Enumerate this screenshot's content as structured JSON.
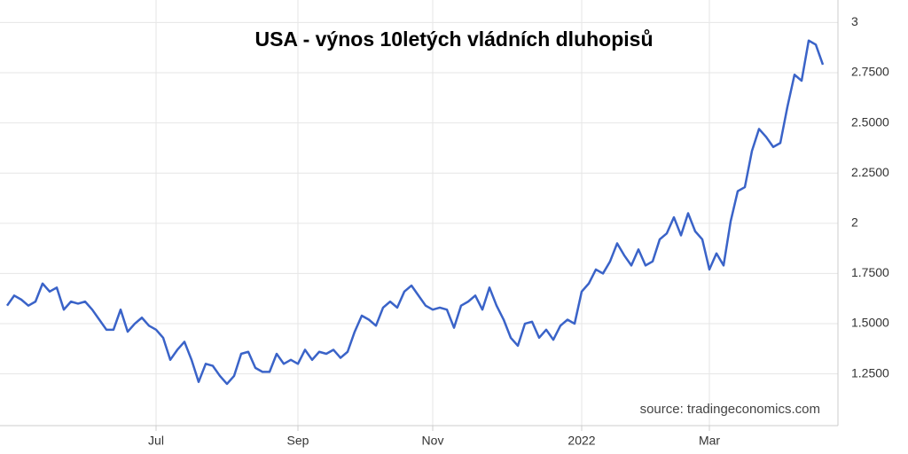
{
  "chart_data": {
    "type": "line",
    "title": "USA - výnos 10letých vládních dluhopisů",
    "source": "source: tradingeconomics.com",
    "categories": [
      null,
      null,
      null,
      null,
      null,
      null,
      null,
      null,
      null,
      null,
      null,
      null,
      null,
      null,
      null,
      null,
      null,
      null,
      null,
      null,
      null,
      "Jul",
      null,
      null,
      null,
      null,
      null,
      null,
      null,
      null,
      null,
      null,
      null,
      null,
      null,
      null,
      null,
      null,
      null,
      null,
      null,
      "Sep",
      null,
      null,
      null,
      null,
      null,
      null,
      null,
      null,
      null,
      null,
      null,
      null,
      null,
      null,
      null,
      null,
      null,
      null,
      "Nov",
      null,
      null,
      null,
      null,
      null,
      null,
      null,
      null,
      null,
      null,
      null,
      null,
      null,
      null,
      null,
      null,
      null,
      null,
      null,
      null,
      "2022",
      null,
      null,
      null,
      null,
      null,
      null,
      null,
      null,
      null,
      null,
      null,
      null,
      null,
      null,
      null,
      null,
      null,
      "Mar",
      null,
      null,
      null,
      null,
      null,
      null,
      null,
      null,
      null,
      null,
      null,
      null,
      null,
      null,
      null,
      null
    ],
    "series": [
      {
        "color": "#3a63c8",
        "values": [
          1.59,
          1.64,
          1.62,
          1.59,
          1.61,
          1.7,
          1.66,
          1.68,
          1.57,
          1.61,
          1.6,
          1.61,
          1.57,
          1.52,
          1.47,
          1.47,
          1.57,
          1.46,
          1.5,
          1.53,
          1.49,
          1.47,
          1.43,
          1.32,
          1.37,
          1.41,
          1.32,
          1.21,
          1.3,
          1.29,
          1.24,
          1.2,
          1.24,
          1.35,
          1.36,
          1.28,
          1.26,
          1.26,
          1.35,
          1.3,
          1.32,
          1.3,
          1.37,
          1.32,
          1.36,
          1.35,
          1.37,
          1.33,
          1.36,
          1.46,
          1.54,
          1.52,
          1.49,
          1.58,
          1.61,
          1.58,
          1.66,
          1.69,
          1.64,
          1.59,
          1.57,
          1.58,
          1.57,
          1.48,
          1.59,
          1.61,
          1.64,
          1.57,
          1.68,
          1.59,
          1.52,
          1.43,
          1.39,
          1.5,
          1.51,
          1.43,
          1.47,
          1.42,
          1.49,
          1.52,
          1.5,
          1.66,
          1.7,
          1.77,
          1.75,
          1.81,
          1.9,
          1.84,
          1.79,
          1.87,
          1.79,
          1.81,
          1.92,
          1.95,
          2.03,
          1.94,
          2.05,
          1.96,
          1.92,
          1.77,
          1.85,
          1.79,
          2.01,
          2.16,
          2.18,
          2.36,
          2.47,
          2.43,
          2.38,
          2.4,
          2.58,
          2.74,
          2.71,
          2.91,
          2.89,
          2.79
        ]
      }
    ],
    "ylim": [
      1.01,
      3.09
    ],
    "yticks": [
      {
        "value": 1.25,
        "label": "1.2500"
      },
      {
        "value": 1.5,
        "label": "1.5000"
      },
      {
        "value": 1.75,
        "label": "1.7500"
      },
      2,
      {
        "value": 2.25,
        "label": "2.2500"
      },
      {
        "value": 2.5,
        "label": "2.5000"
      },
      {
        "value": 2.75,
        "label": "2.7500"
      },
      3
    ],
    "grid": true
  }
}
